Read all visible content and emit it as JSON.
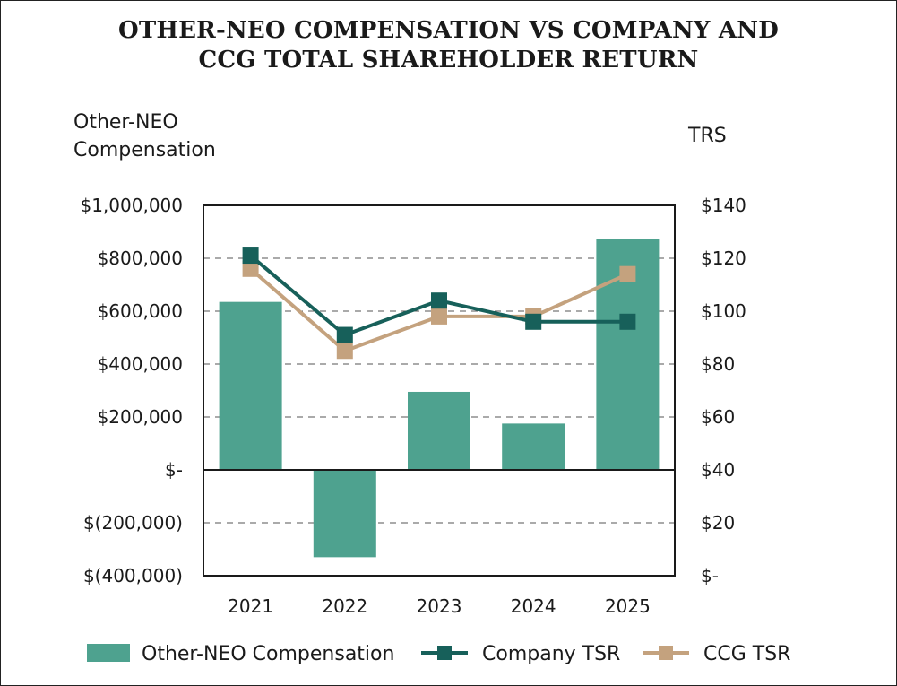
{
  "chart_data": {
    "type": "bar",
    "title": "OTHER-NEO COMPENSATION VS COMPANY AND CCG TOTAL SHAREHOLDER RETURN",
    "title_lines": [
      "OTHER-NEO COMPENSATION VS COMPANY AND",
      "CCG TOTAL SHAREHOLDER RETURN"
    ],
    "y_left_label_lines": [
      "Other-NEO",
      "Compensation"
    ],
    "y_right_label": "TRS",
    "categories": [
      "2021",
      "2022",
      "2023",
      "2024",
      "2025"
    ],
    "y_left": {
      "range": [
        -400000,
        1000000
      ],
      "ticks": [
        1000000,
        800000,
        600000,
        400000,
        200000,
        0,
        -200000,
        -400000
      ],
      "tick_labels": [
        "$1,000,000",
        "$800,000",
        "$600,000",
        "$400,000",
        "$200,000",
        "$-",
        "$(200,000)",
        "$(400,000)"
      ]
    },
    "y_right": {
      "range": [
        0,
        140
      ],
      "ticks": [
        140,
        120,
        100,
        80,
        60,
        40,
        20,
        0
      ],
      "tick_labels": [
        "$140",
        "$120",
        "$100",
        "$80",
        "$60",
        "$40",
        "$20",
        "$-"
      ]
    },
    "gridlines": "dashed",
    "legend_position": "bottom",
    "series": [
      {
        "name": "Other-NEO Compensation",
        "kind": "bar",
        "axis": "left",
        "color": "#4ea28f",
        "values": [
          635000,
          -330000,
          295000,
          175000,
          873000
        ]
      },
      {
        "name": "Company TSR",
        "kind": "line",
        "axis": "right",
        "color": "#17605a",
        "marker": "square",
        "values": [
          121,
          91,
          104,
          96,
          96
        ]
      },
      {
        "name": "CCG TSR",
        "kind": "line",
        "axis": "right",
        "color": "#c4a27e",
        "marker": "square",
        "values": [
          116,
          85,
          98,
          98,
          114
        ]
      }
    ]
  }
}
